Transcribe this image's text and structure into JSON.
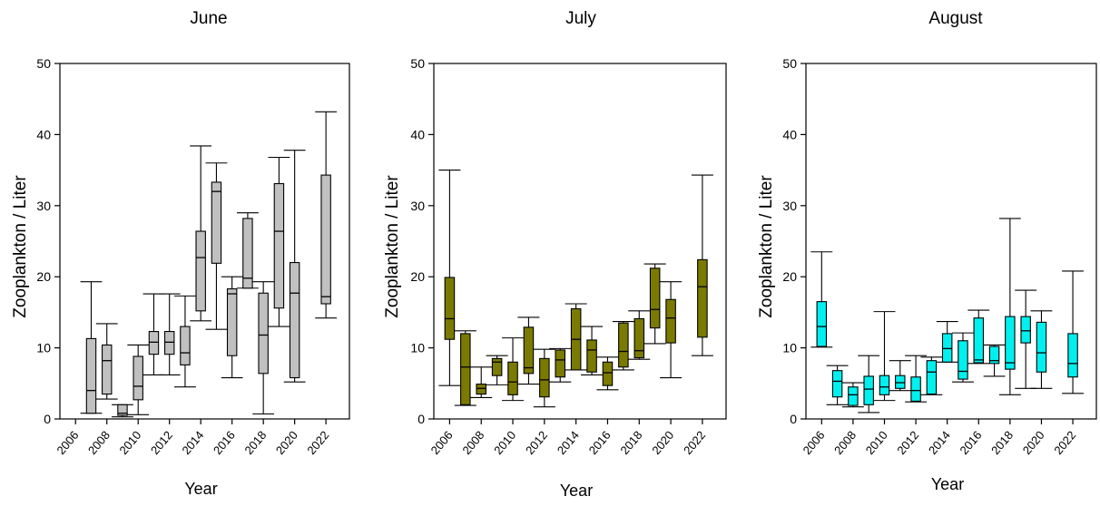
{
  "chart_data": [
    {
      "type": "box",
      "title": "June",
      "xlabel": "Year",
      "ylabel": "Zooplankton / Liter",
      "ylim": [
        0,
        50
      ],
      "yticks": [
        0,
        10,
        20,
        30,
        40,
        50
      ],
      "xtick_labels": [
        "2006",
        "2008",
        "2010",
        "2012",
        "2014",
        "2016",
        "2018",
        "2020",
        "2022"
      ],
      "fill_color": "#c0c0c0",
      "years": [
        2007,
        2008,
        2009,
        2010,
        2011,
        2012,
        2013,
        2014,
        2015,
        2016,
        2017,
        2018,
        2019,
        2020,
        2022
      ],
      "boxes": [
        {
          "year": 2007,
          "min": 0.8,
          "q1": 0.8,
          "median": 4.0,
          "q3": 11.3,
          "max": 19.3
        },
        {
          "year": 2008,
          "min": 2.8,
          "q1": 3.5,
          "median": 8.2,
          "q3": 10.4,
          "max": 13.4
        },
        {
          "year": 2009,
          "min": 0.3,
          "q1": 0.5,
          "median": 0.8,
          "q3": 2.0,
          "max": 2.0
        },
        {
          "year": 2010,
          "min": 0.6,
          "q1": 2.7,
          "median": 4.6,
          "q3": 8.8,
          "max": 10.4
        },
        {
          "year": 2011,
          "min": 6.2,
          "q1": 9.1,
          "median": 10.8,
          "q3": 12.3,
          "max": 17.6
        },
        {
          "year": 2012,
          "min": 6.2,
          "q1": 9.1,
          "median": 10.8,
          "q3": 12.3,
          "max": 17.6
        },
        {
          "year": 2013,
          "min": 4.5,
          "q1": 7.6,
          "median": 9.3,
          "q3": 13.0,
          "max": 17.3
        },
        {
          "year": 2014,
          "min": 13.8,
          "q1": 15.2,
          "median": 22.7,
          "q3": 26.4,
          "max": 38.4
        },
        {
          "year": 2015,
          "min": 12.6,
          "q1": 21.9,
          "median": 32.0,
          "q3": 33.3,
          "max": 36.0
        },
        {
          "year": 2016,
          "min": 5.8,
          "q1": 8.9,
          "median": 17.6,
          "q3": 18.3,
          "max": 20.0
        },
        {
          "year": 2017,
          "min": 18.4,
          "q1": 18.4,
          "median": 19.8,
          "q3": 28.2,
          "max": 29.0
        },
        {
          "year": 2018,
          "min": 0.7,
          "q1": 6.4,
          "median": 11.8,
          "q3": 17.7,
          "max": 19.3
        },
        {
          "year": 2019,
          "min": 13.0,
          "q1": 15.6,
          "median": 26.4,
          "q3": 33.1,
          "max": 36.8
        },
        {
          "year": 2020,
          "min": 5.2,
          "q1": 5.8,
          "median": 17.7,
          "q3": 22.0,
          "max": 37.8
        },
        {
          "year": 2022,
          "min": 14.2,
          "q1": 16.2,
          "median": 17.2,
          "q3": 34.3,
          "max": 43.2
        }
      ]
    },
    {
      "type": "box",
      "title": "July",
      "xlabel": "Year",
      "ylabel": "Zooplankton / Liter",
      "ylim": [
        0,
        50
      ],
      "yticks": [
        0,
        10,
        20,
        30,
        40,
        50
      ],
      "xtick_labels": [
        "2006",
        "2008",
        "2010",
        "2012",
        "2014",
        "2016",
        "2018",
        "2020",
        "2022"
      ],
      "fill_color": "#7a7a00",
      "years": [
        2006,
        2007,
        2008,
        2009,
        2010,
        2011,
        2012,
        2013,
        2014,
        2015,
        2016,
        2017,
        2018,
        2019,
        2020,
        2022
      ],
      "boxes": [
        {
          "year": 2006,
          "min": 4.7,
          "q1": 11.2,
          "median": 14.1,
          "q3": 19.9,
          "max": 35.0
        },
        {
          "year": 2007,
          "min": 1.9,
          "q1": 2.0,
          "median": 7.3,
          "q3": 12.0,
          "max": 12.4
        },
        {
          "year": 2008,
          "min": 3.0,
          "q1": 3.5,
          "median": 4.3,
          "q3": 4.9,
          "max": 7.3
        },
        {
          "year": 2009,
          "min": 4.8,
          "q1": 6.1,
          "median": 8.0,
          "q3": 8.5,
          "max": 8.9
        },
        {
          "year": 2010,
          "min": 2.6,
          "q1": 3.4,
          "median": 5.2,
          "q3": 8.0,
          "max": 11.4
        },
        {
          "year": 2011,
          "min": 4.9,
          "q1": 6.4,
          "median": 7.2,
          "q3": 12.9,
          "max": 14.3
        },
        {
          "year": 2012,
          "min": 1.7,
          "q1": 3.1,
          "median": 5.5,
          "q3": 8.5,
          "max": 9.8
        },
        {
          "year": 2013,
          "min": 5.2,
          "q1": 5.9,
          "median": 8.3,
          "q3": 9.7,
          "max": 9.9
        },
        {
          "year": 2014,
          "min": 6.9,
          "q1": 6.9,
          "median": 11.2,
          "q3": 15.5,
          "max": 16.2
        },
        {
          "year": 2015,
          "min": 6.2,
          "q1": 6.6,
          "median": 9.7,
          "q3": 11.1,
          "max": 13.0
        },
        {
          "year": 2016,
          "min": 4.1,
          "q1": 4.7,
          "median": 6.5,
          "q3": 8.0,
          "max": 8.7
        },
        {
          "year": 2017,
          "min": 6.9,
          "q1": 7.3,
          "median": 9.5,
          "q3": 13.5,
          "max": 13.7
        },
        {
          "year": 2018,
          "min": 8.4,
          "q1": 8.6,
          "median": 9.6,
          "q3": 14.1,
          "max": 15.2
        },
        {
          "year": 2019,
          "min": 10.6,
          "q1": 12.8,
          "median": 15.4,
          "q3": 21.2,
          "max": 21.8
        },
        {
          "year": 2020,
          "min": 5.8,
          "q1": 10.7,
          "median": 14.2,
          "q3": 16.8,
          "max": 19.3
        },
        {
          "year": 2022,
          "min": 8.9,
          "q1": 11.5,
          "median": 18.6,
          "q3": 22.4,
          "max": 34.3
        }
      ]
    },
    {
      "type": "box",
      "title": "August",
      "xlabel": "Year",
      "ylabel": "Zooplankton / Liter",
      "ylim": [
        0,
        50
      ],
      "yticks": [
        0,
        10,
        20,
        30,
        40,
        50
      ],
      "xtick_labels": [
        "2006",
        "2008",
        "2010",
        "2012",
        "2014",
        "2016",
        "2018",
        "2020",
        "2022"
      ],
      "fill_color": "#00f0f0",
      "years": [
        2006,
        2007,
        2008,
        2009,
        2010,
        2011,
        2012,
        2013,
        2014,
        2015,
        2016,
        2017,
        2018,
        2019,
        2020,
        2022
      ],
      "boxes": [
        {
          "year": 2006,
          "min": 10.1,
          "q1": 10.2,
          "median": 13.0,
          "q3": 16.5,
          "max": 23.5
        },
        {
          "year": 2007,
          "min": 2.0,
          "q1": 3.1,
          "median": 5.3,
          "q3": 6.8,
          "max": 7.5
        },
        {
          "year": 2008,
          "min": 1.7,
          "q1": 1.9,
          "median": 3.4,
          "q3": 4.5,
          "max": 5.1
        },
        {
          "year": 2009,
          "min": 0.9,
          "q1": 2.0,
          "median": 4.2,
          "q3": 6.0,
          "max": 8.9
        },
        {
          "year": 2010,
          "min": 2.6,
          "q1": 3.4,
          "median": 4.5,
          "q3": 6.1,
          "max": 15.1
        },
        {
          "year": 2011,
          "min": 4.0,
          "q1": 4.3,
          "median": 5.1,
          "q3": 6.1,
          "max": 8.2
        },
        {
          "year": 2012,
          "min": 2.4,
          "q1": 2.5,
          "median": 4.0,
          "q3": 5.9,
          "max": 8.9
        },
        {
          "year": 2013,
          "min": 3.4,
          "q1": 3.5,
          "median": 6.6,
          "q3": 8.2,
          "max": 8.7
        },
        {
          "year": 2014,
          "min": 8.0,
          "q1": 8.0,
          "median": 9.9,
          "q3": 12.0,
          "max": 13.7
        },
        {
          "year": 2015,
          "min": 5.2,
          "q1": 5.6,
          "median": 6.7,
          "q3": 11.0,
          "max": 12.1
        },
        {
          "year": 2016,
          "min": 7.8,
          "q1": 7.9,
          "median": 8.3,
          "q3": 14.2,
          "max": 15.3
        },
        {
          "year": 2017,
          "min": 6.0,
          "q1": 7.8,
          "median": 8.2,
          "q3": 10.2,
          "max": 10.4
        },
        {
          "year": 2018,
          "min": 3.4,
          "q1": 7.0,
          "median": 7.9,
          "q3": 14.4,
          "max": 28.2
        },
        {
          "year": 2019,
          "min": 4.3,
          "q1": 10.7,
          "median": 12.4,
          "q3": 14.4,
          "max": 18.1
        },
        {
          "year": 2020,
          "min": 4.3,
          "q1": 6.6,
          "median": 9.3,
          "q3": 13.6,
          "max": 15.2
        },
        {
          "year": 2022,
          "min": 3.6,
          "q1": 5.9,
          "median": 7.8,
          "q3": 12.0,
          "max": 20.8
        }
      ]
    }
  ]
}
